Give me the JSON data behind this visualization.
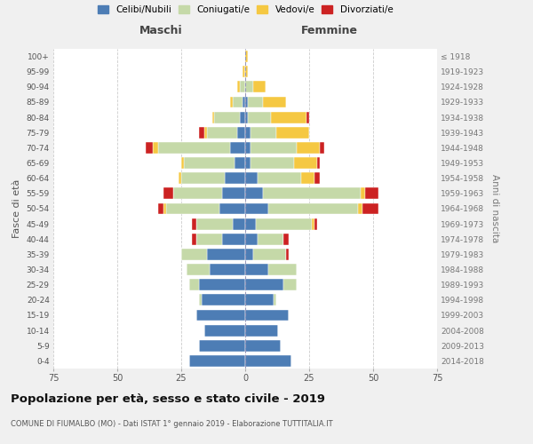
{
  "age_groups_bottom_to_top": [
    "0-4",
    "5-9",
    "10-14",
    "15-19",
    "20-24",
    "25-29",
    "30-34",
    "35-39",
    "40-44",
    "45-49",
    "50-54",
    "55-59",
    "60-64",
    "65-69",
    "70-74",
    "75-79",
    "80-84",
    "85-89",
    "90-94",
    "95-99",
    "100+"
  ],
  "birth_years_bottom_to_top": [
    "2014-2018",
    "2009-2013",
    "2004-2008",
    "1999-2003",
    "1994-1998",
    "1989-1993",
    "1984-1988",
    "1979-1983",
    "1974-1978",
    "1969-1973",
    "1964-1968",
    "1959-1963",
    "1954-1958",
    "1949-1953",
    "1944-1948",
    "1939-1943",
    "1934-1938",
    "1929-1933",
    "1924-1928",
    "1919-1923",
    "≤ 1918"
  ],
  "colors": {
    "celibi": "#4d7db5",
    "coniugati": "#c5d9a8",
    "vedovi": "#f5c842",
    "divorziati": "#cc2222"
  },
  "legend_colors": {
    "Celibi/Nubili": "#4d7db5",
    "Coniugati/e": "#c5d9a8",
    "Vedovi/e": "#f5c842",
    "Divorziati/e": "#cc2222"
  },
  "maschi_bottom_to_top": {
    "celibi": [
      22,
      18,
      16,
      19,
      17,
      18,
      14,
      15,
      9,
      5,
      10,
      9,
      8,
      4,
      6,
      3,
      2,
      1,
      0,
      0,
      0
    ],
    "coniugati": [
      0,
      0,
      0,
      0,
      1,
      4,
      9,
      10,
      10,
      14,
      21,
      19,
      17,
      20,
      28,
      12,
      10,
      4,
      2,
      0,
      0
    ],
    "vedovi": [
      0,
      0,
      0,
      0,
      0,
      0,
      0,
      0,
      0,
      0,
      1,
      0,
      1,
      1,
      2,
      1,
      1,
      1,
      1,
      1,
      0
    ],
    "divorziati": [
      0,
      0,
      0,
      0,
      0,
      0,
      0,
      0,
      2,
      2,
      2,
      4,
      0,
      0,
      3,
      2,
      0,
      0,
      0,
      0,
      0
    ]
  },
  "femmine_bottom_to_top": {
    "nubili": [
      18,
      14,
      13,
      17,
      11,
      15,
      9,
      3,
      5,
      4,
      9,
      7,
      5,
      2,
      2,
      2,
      1,
      1,
      0,
      0,
      0
    ],
    "coniugate": [
      0,
      0,
      0,
      0,
      1,
      5,
      11,
      13,
      10,
      22,
      35,
      38,
      17,
      17,
      18,
      10,
      9,
      6,
      3,
      0,
      0
    ],
    "vedove": [
      0,
      0,
      0,
      0,
      0,
      0,
      0,
      0,
      0,
      1,
      2,
      2,
      5,
      9,
      9,
      13,
      14,
      9,
      5,
      1,
      1
    ],
    "divorziate": [
      0,
      0,
      0,
      0,
      0,
      0,
      0,
      1,
      2,
      1,
      6,
      5,
      2,
      1,
      2,
      0,
      1,
      0,
      0,
      0,
      0
    ]
  },
  "xlim": 75,
  "title": "Popolazione per età, sesso e stato civile - 2019",
  "subtitle": "COMUNE DI FIUMALBO (MO) - Dati ISTAT 1° gennaio 2019 - Elaborazione TUTTITALIA.IT",
  "ylabel_left": "Fasce di età",
  "ylabel_right": "Anni di nascita",
  "xlabel_left": "Maschi",
  "xlabel_right": "Femmine",
  "bg_color": "#f0f0f0",
  "plot_bg_color": "#ffffff"
}
